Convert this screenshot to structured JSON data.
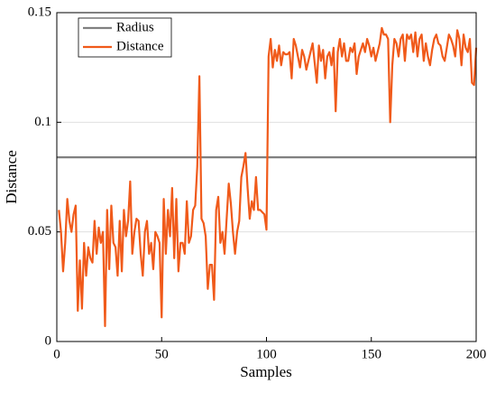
{
  "chart_data": {
    "type": "line",
    "xlabel": "Samples",
    "ylabel": "Distance",
    "xlim": [
      0,
      200
    ],
    "ylim": [
      0,
      0.15
    ],
    "xticks": [
      0,
      50,
      100,
      150,
      200
    ],
    "yticks": [
      0,
      0.05,
      0.1,
      0.15
    ],
    "grid": true,
    "legend": "upper left",
    "series": [
      {
        "name": "Radius",
        "color": "#808080",
        "x": [
          0,
          200
        ],
        "values": [
          0.084,
          0.084
        ]
      },
      {
        "name": "Distance",
        "color": "#f05a1a",
        "x": [
          1,
          2,
          3,
          4,
          5,
          6,
          7,
          8,
          9,
          10,
          11,
          12,
          13,
          14,
          15,
          16,
          17,
          18,
          19,
          20,
          21,
          22,
          23,
          24,
          25,
          26,
          27,
          28,
          29,
          30,
          31,
          32,
          33,
          34,
          35,
          36,
          37,
          38,
          39,
          40,
          41,
          42,
          43,
          44,
          45,
          46,
          47,
          48,
          49,
          50,
          51,
          52,
          53,
          54,
          55,
          56,
          57,
          58,
          59,
          60,
          61,
          62,
          63,
          64,
          65,
          66,
          67,
          68,
          69,
          70,
          71,
          72,
          73,
          74,
          75,
          76,
          77,
          78,
          79,
          80,
          81,
          82,
          83,
          84,
          85,
          86,
          87,
          88,
          89,
          90,
          91,
          92,
          93,
          94,
          95,
          96,
          97,
          98,
          99,
          100,
          101,
          102,
          103,
          104,
          105,
          106,
          107,
          108,
          109,
          110,
          111,
          112,
          113,
          114,
          115,
          116,
          117,
          118,
          119,
          120,
          121,
          122,
          123,
          124,
          125,
          126,
          127,
          128,
          129,
          130,
          131,
          132,
          133,
          134,
          135,
          136,
          137,
          138,
          139,
          140,
          141,
          142,
          143,
          144,
          145,
          146,
          147,
          148,
          149,
          150,
          151,
          152,
          153,
          154,
          155,
          156,
          157,
          158,
          159,
          160,
          161,
          162,
          163,
          164,
          165,
          166,
          167,
          168,
          169,
          170,
          171,
          172,
          173,
          174,
          175,
          176,
          177,
          178,
          179,
          180,
          181,
          182,
          183,
          184,
          185,
          186,
          187,
          188,
          189,
          190,
          191,
          192,
          193,
          194,
          195,
          196,
          197,
          198,
          199,
          200
        ],
        "values": [
          0.06,
          0.05,
          0.032,
          0.045,
          0.065,
          0.055,
          0.05,
          0.058,
          0.062,
          0.014,
          0.037,
          0.015,
          0.045,
          0.03,
          0.043,
          0.038,
          0.036,
          0.055,
          0.04,
          0.052,
          0.045,
          0.05,
          0.007,
          0.06,
          0.033,
          0.062,
          0.045,
          0.043,
          0.03,
          0.055,
          0.032,
          0.06,
          0.048,
          0.055,
          0.073,
          0.04,
          0.05,
          0.056,
          0.055,
          0.04,
          0.03,
          0.05,
          0.055,
          0.04,
          0.045,
          0.033,
          0.05,
          0.048,
          0.045,
          0.011,
          0.065,
          0.04,
          0.06,
          0.048,
          0.07,
          0.038,
          0.065,
          0.032,
          0.045,
          0.045,
          0.04,
          0.064,
          0.045,
          0.048,
          0.06,
          0.062,
          0.08,
          0.121,
          0.056,
          0.054,
          0.048,
          0.024,
          0.035,
          0.035,
          0.019,
          0.06,
          0.066,
          0.045,
          0.05,
          0.04,
          0.056,
          0.072,
          0.063,
          0.05,
          0.04,
          0.05,
          0.055,
          0.075,
          0.08,
          0.086,
          0.07,
          0.056,
          0.064,
          0.06,
          0.075,
          0.06,
          0.06,
          0.059,
          0.058,
          0.051,
          0.13,
          0.138,
          0.125,
          0.133,
          0.128,
          0.135,
          0.126,
          0.132,
          0.131,
          0.131,
          0.132,
          0.12,
          0.138,
          0.135,
          0.13,
          0.125,
          0.133,
          0.13,
          0.124,
          0.128,
          0.132,
          0.136,
          0.127,
          0.118,
          0.135,
          0.128,
          0.133,
          0.12,
          0.13,
          0.132,
          0.126,
          0.134,
          0.105,
          0.132,
          0.138,
          0.13,
          0.136,
          0.128,
          0.128,
          0.134,
          0.132,
          0.136,
          0.122,
          0.13,
          0.133,
          0.136,
          0.132,
          0.138,
          0.135,
          0.13,
          0.134,
          0.128,
          0.132,
          0.136,
          0.143,
          0.14,
          0.14,
          0.138,
          0.1,
          0.126,
          0.138,
          0.136,
          0.13,
          0.138,
          0.14,
          0.128,
          0.14,
          0.138,
          0.14,
          0.132,
          0.141,
          0.13,
          0.138,
          0.14,
          0.128,
          0.136,
          0.13,
          0.126,
          0.133,
          0.138,
          0.14,
          0.136,
          0.135,
          0.13,
          0.128,
          0.134,
          0.14,
          0.138,
          0.135,
          0.13,
          0.142,
          0.138,
          0.126,
          0.14,
          0.134,
          0.132,
          0.138,
          0.118,
          0.117,
          0.134
        ]
      }
    ]
  }
}
